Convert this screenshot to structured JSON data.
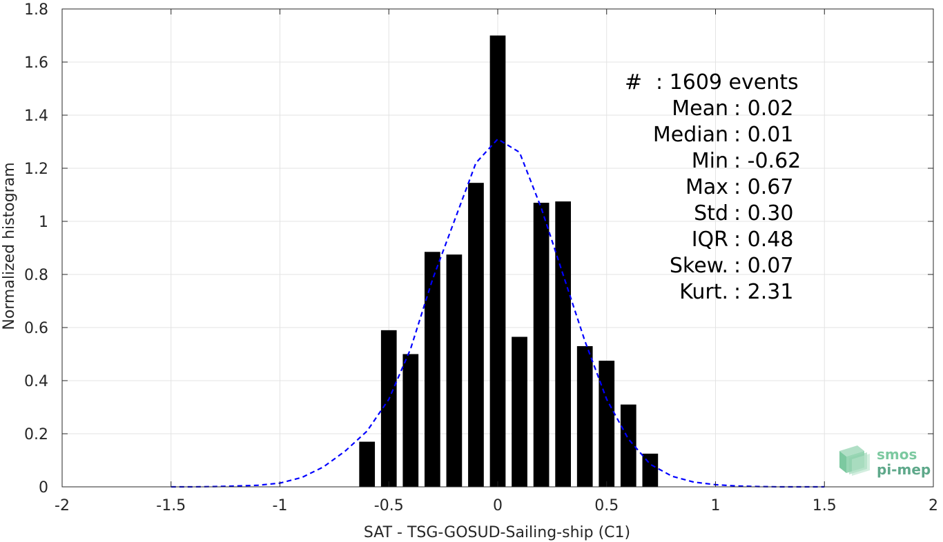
{
  "chart_data": {
    "type": "bar",
    "xlabel": "SAT - TSG-GOSUD-Sailing-ship (C1)",
    "ylabel": "Normalized histogram",
    "xlim": [
      -2,
      2
    ],
    "ylim": [
      0,
      1.8
    ],
    "xticks": [
      -2,
      -1.5,
      -1,
      -0.5,
      0,
      0.5,
      1,
      1.5,
      2
    ],
    "xtick_labels": [
      "-2",
      "-1.5",
      "-1",
      "-0.5",
      "0",
      "0.5",
      "1",
      "1.5",
      "2"
    ],
    "yticks": [
      0,
      0.2,
      0.4,
      0.6,
      0.8,
      1,
      1.2,
      1.4,
      1.6,
      1.8
    ],
    "ytick_labels": [
      "0",
      "0.2",
      "0.4",
      "0.6",
      "0.8",
      "1",
      "1.2",
      "1.4",
      "1.6",
      "1.8"
    ],
    "grid": true,
    "bin_width": 0.1,
    "bars": {
      "x": [
        -0.6,
        -0.5,
        -0.4,
        -0.3,
        -0.2,
        -0.1,
        0,
        0.1,
        0.2,
        0.3,
        0.4,
        0.5,
        0.6,
        0.7
      ],
      "values": [
        0.17,
        0.59,
        0.5,
        0.885,
        0.875,
        1.145,
        1.7,
        0.565,
        1.07,
        1.075,
        0.53,
        0.475,
        0.31,
        0.125
      ],
      "color": "#000000"
    },
    "fit_curve": {
      "style": "dashed",
      "color": "#0000ff",
      "x": [
        -1.5,
        -1.4,
        -1.3,
        -1.2,
        -1.1,
        -1.0,
        -0.9,
        -0.8,
        -0.7,
        -0.6,
        -0.5,
        -0.4,
        -0.3,
        -0.2,
        -0.1,
        0,
        0.1,
        0.2,
        0.3,
        0.4,
        0.5,
        0.6,
        0.7,
        0.8,
        0.9,
        1.0,
        1.1,
        1.2,
        1.3,
        1.4,
        1.5
      ],
      "y": [
        0.0,
        0.0,
        0.001,
        0.003,
        0.006,
        0.014,
        0.035,
        0.075,
        0.135,
        0.21,
        0.33,
        0.52,
        0.78,
        1.0,
        1.22,
        1.31,
        1.26,
        1.05,
        0.8,
        0.55,
        0.33,
        0.18,
        0.085,
        0.04,
        0.018,
        0.008,
        0.003,
        0.001,
        0.0,
        0.0,
        0.0
      ]
    },
    "annotation_lines": [
      {
        "key": "#",
        "value": ": 1609 events",
        "anchor": "left"
      },
      {
        "key": "Mean",
        "value": ": 0.02",
        "anchor": "colon"
      },
      {
        "key": "Median",
        "value": ": 0.01",
        "anchor": "colon"
      },
      {
        "key": "Min",
        "value": ": -0.62",
        "anchor": "colon"
      },
      {
        "key": "Max",
        "value": ": 0.67",
        "anchor": "colon"
      },
      {
        "key": "Std",
        "value": ": 0.30",
        "anchor": "colon"
      },
      {
        "key": "IQR",
        "value": ": 0.48",
        "anchor": "colon"
      },
      {
        "key": "Skew.",
        "value": ": 0.07",
        "anchor": "colon"
      },
      {
        "key": "Kurt.",
        "value": ": 2.31",
        "anchor": "colon"
      }
    ]
  },
  "logo": {
    "line1": "smos",
    "line2": "pi-mep",
    "color_top": "#7cc9a0",
    "color_bottom": "#5ea88a"
  }
}
